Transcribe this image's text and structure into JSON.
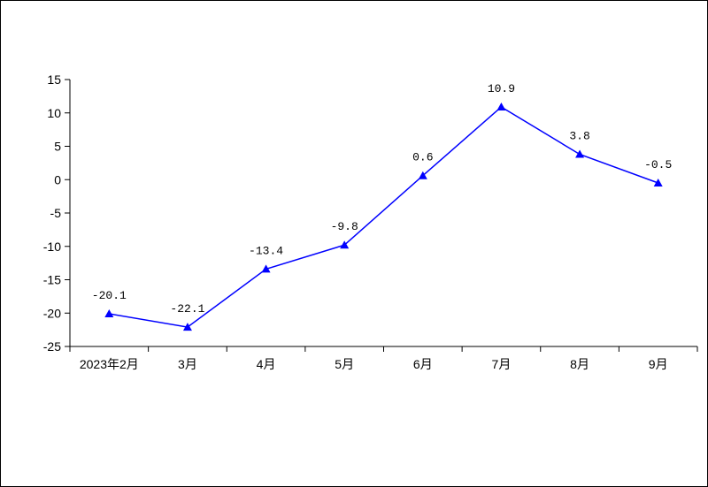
{
  "chart_data": {
    "type": "line",
    "categories": [
      "2023年2月",
      "3月",
      "4月",
      "5月",
      "6月",
      "7月",
      "8月",
      "9月"
    ],
    "series": [
      {
        "values": [
          -20.1,
          -22.1,
          -13.4,
          -9.8,
          0.6,
          10.9,
          3.8,
          -0.5
        ],
        "color": "#0000ff",
        "marker": "triangle"
      }
    ],
    "data_labels": [
      "-20.1",
      "-22.1",
      "-13.4",
      "-9.8",
      "0.6",
      "10.9",
      "3.8",
      "-0.5"
    ],
    "y_ticks": [
      15,
      10,
      5,
      0,
      -5,
      -10,
      -15,
      -20,
      -25
    ],
    "ylim": [
      -25,
      15
    ],
    "grid": false,
    "legend": "none"
  }
}
